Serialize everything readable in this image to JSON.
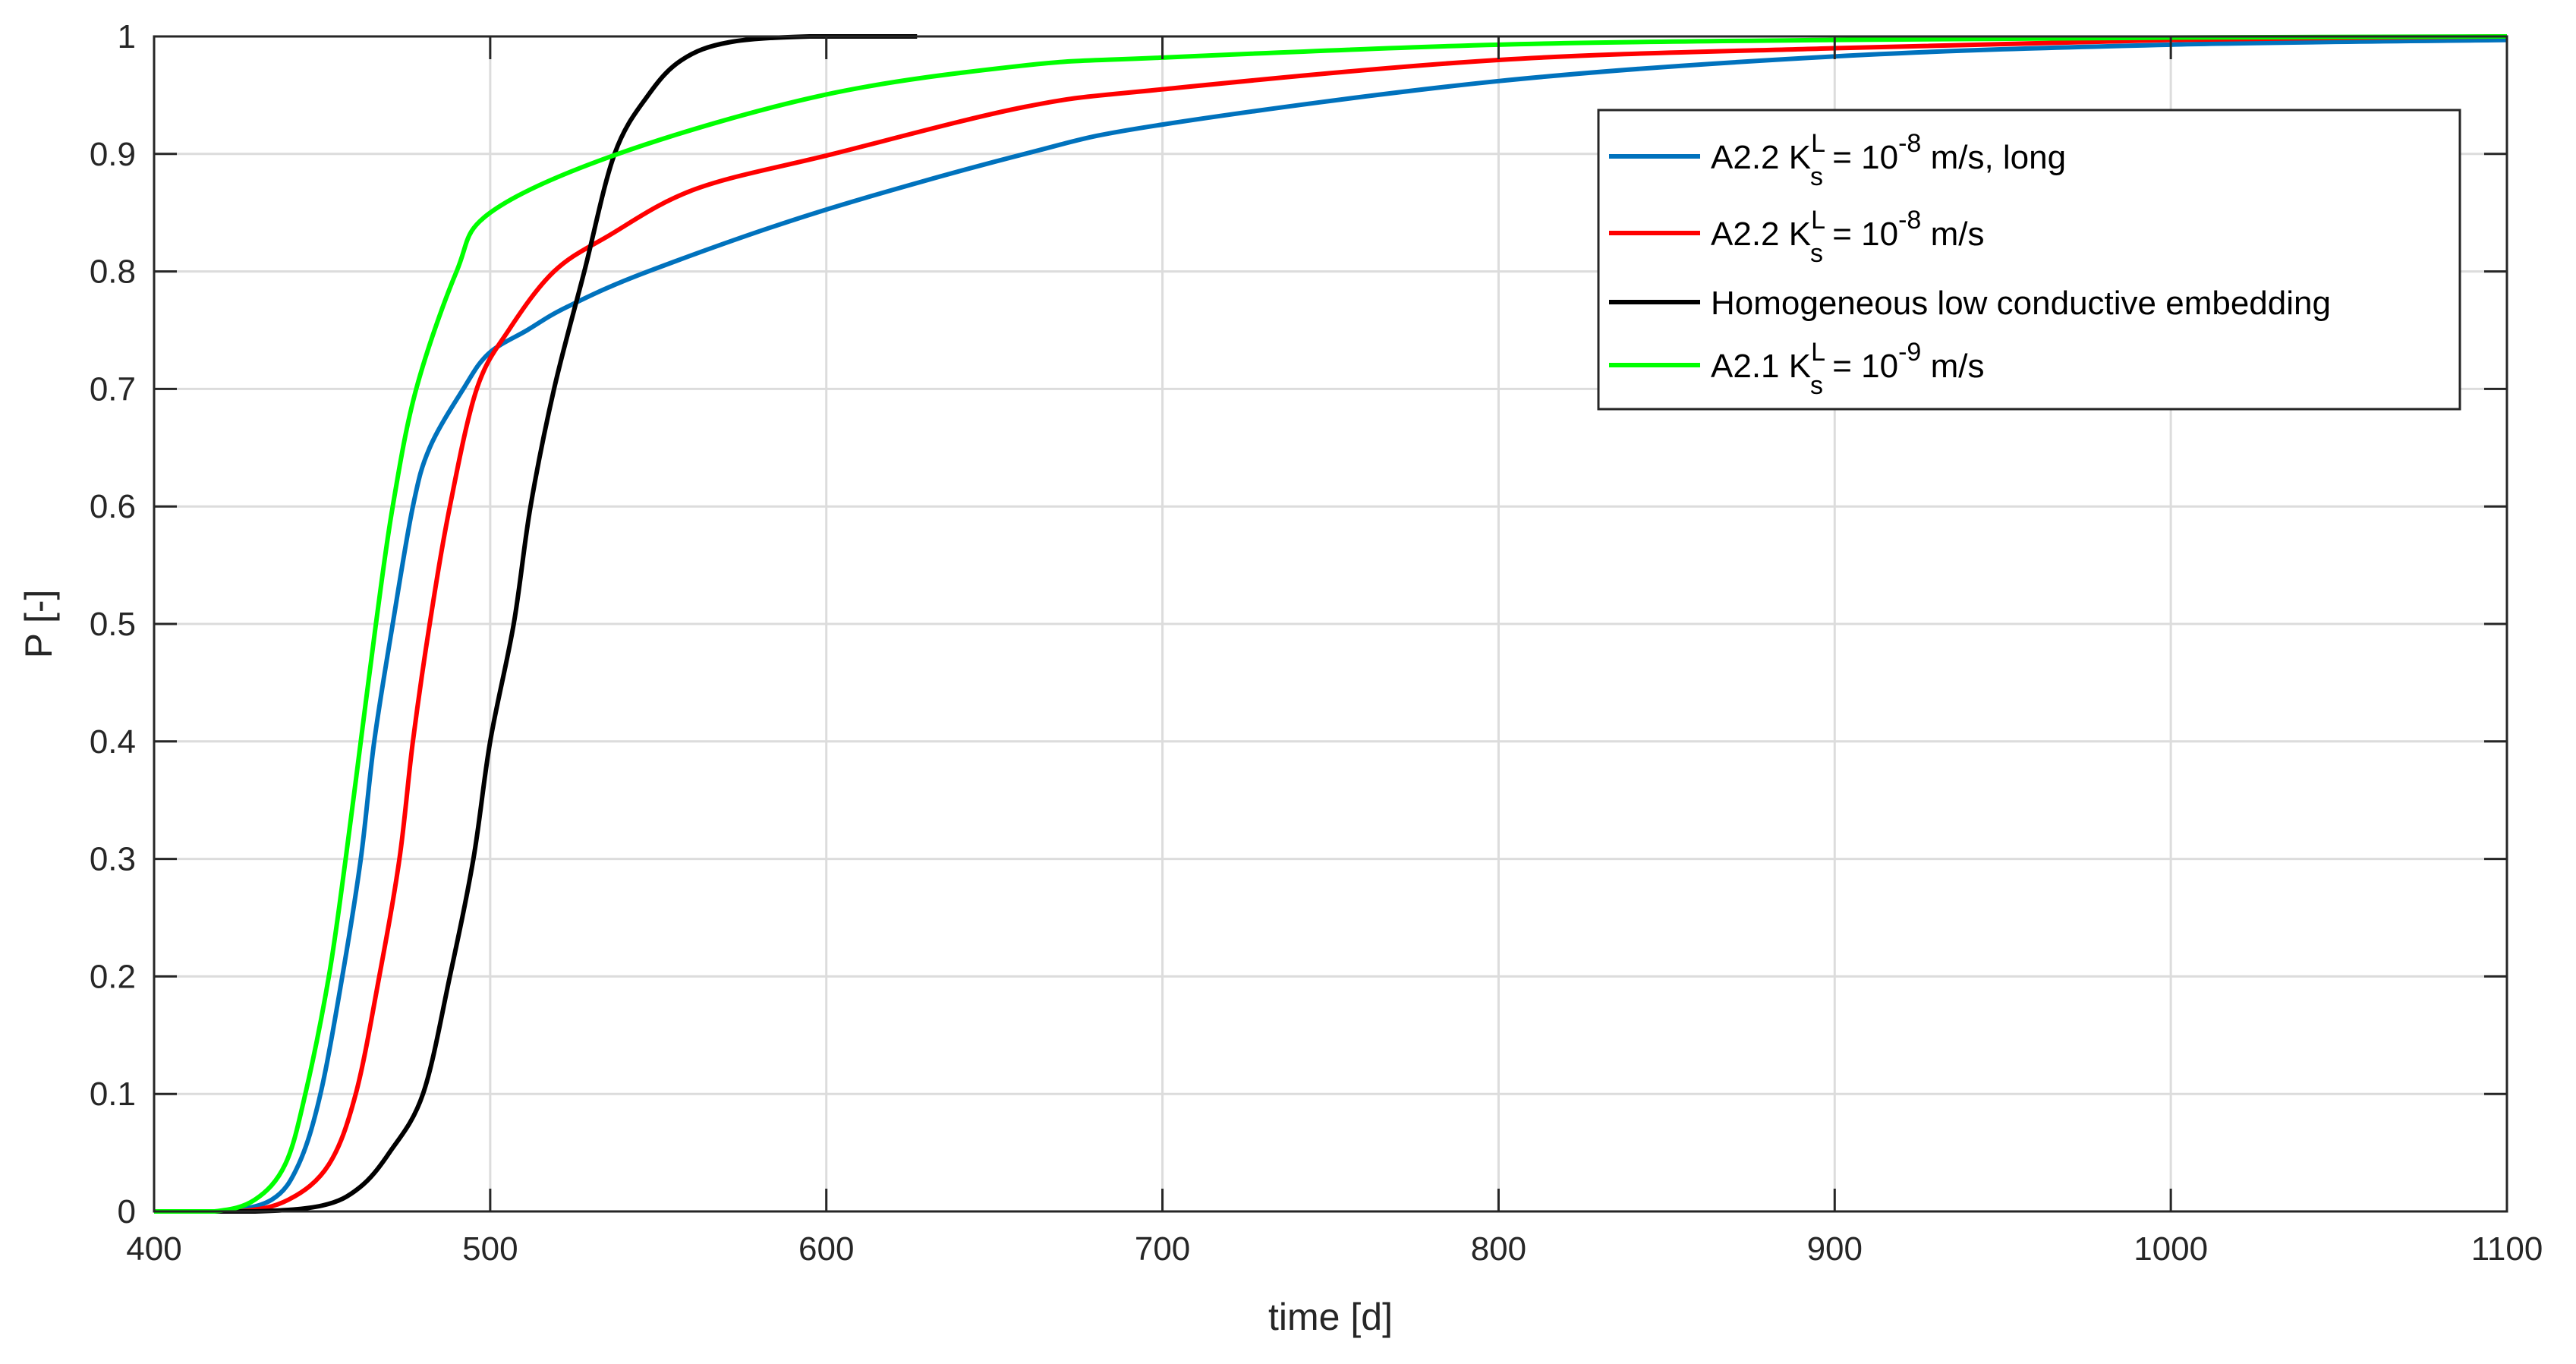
{
  "chart_data": {
    "type": "line",
    "title": "",
    "xlabel": "time [d]",
    "ylabel": "P [-]",
    "xlim": [
      400,
      1100
    ],
    "ylim": [
      0,
      1
    ],
    "xticks": [
      400,
      500,
      600,
      700,
      800,
      900,
      1000,
      1100
    ],
    "yticks": [
      0,
      0.1,
      0.2,
      0.3,
      0.4,
      0.5,
      0.6,
      0.7,
      0.8,
      0.9,
      1
    ],
    "ytick_labels": [
      "0",
      "0.1",
      "0.2",
      "0.3",
      "0.4",
      "0.5",
      "0.6",
      "0.7",
      "0.8",
      "0.9",
      "1"
    ],
    "grid": true,
    "legend_position": "top-right",
    "series": [
      {
        "name": "A2.2 K_s^L = 10^-8 m/s, long",
        "label_main": "A2.2 K",
        "label_sup": "L",
        "label_sub": "s",
        "label_mid": " = 10",
        "label_exp": "-8",
        "label_tail": " m/s, long",
        "color": "#0072BD",
        "x": [
          400,
          420,
          435,
          443,
          449.5,
          456,
          461.5,
          465.5,
          471,
          477,
          482,
          492,
          499.5,
          511,
          523,
          547,
          597,
          659,
          700,
          800,
          900,
          1000,
          1100
        ],
        "y": [
          0,
          0,
          0.01,
          0.04,
          0.1,
          0.2,
          0.3,
          0.4,
          0.5,
          0.6,
          0.65,
          0.7,
          0.73,
          0.75,
          0.77,
          0.8,
          0.85,
          0.9,
          0.925,
          0.962,
          0.983,
          0.993,
          0.997
        ]
      },
      {
        "name": "A2.2 K_s^L = 10^-8 m/s",
        "label_main": "A2.2 K",
        "label_sup": "L",
        "label_sub": "s",
        "label_mid": " = 10",
        "label_exp": "-8",
        "label_tail": " m/s",
        "color": "#FF0000",
        "x": [
          400,
          425,
          440,
          452,
          460,
          467,
          473,
          477,
          482,
          488,
          496,
          505.5,
          519,
          535,
          561,
          602,
          659,
          700,
          800,
          900,
          1000,
          1100
        ],
        "y": [
          0,
          0,
          0.01,
          0.04,
          0.1,
          0.2,
          0.3,
          0.4,
          0.5,
          0.6,
          0.7,
          0.75,
          0.8,
          0.83,
          0.87,
          0.9,
          0.94,
          0.955,
          0.98,
          0.99,
          0.997,
          1
        ]
      },
      {
        "name": "Homogeneous low conductive embedding",
        "label_main": "Homogeneous low conductive embedding",
        "label_sup": "",
        "label_sub": "",
        "label_mid": "",
        "label_exp": "",
        "label_tail": "",
        "color": "#000000",
        "x": [
          400,
          430,
          450,
          461,
          470,
          480,
          488,
          495,
          500,
          507,
          512,
          519,
          528,
          537,
          547,
          557,
          571,
          595,
          627
        ],
        "y": [
          0,
          0,
          0.005,
          0.02,
          0.05,
          0.1,
          0.2,
          0.3,
          0.4,
          0.5,
          0.6,
          0.7,
          0.8,
          0.9,
          0.95,
          0.98,
          0.995,
          1,
          1
        ]
      },
      {
        "name": "A2.1 K_s^L = 10^-9 m/s",
        "label_main": "A2.1 K",
        "label_sup": "L",
        "label_sub": "s",
        "label_mid": " = 10",
        "label_exp": "-9",
        "label_tail": " m/s",
        "color": "#00FF00",
        "x": [
          400,
          418,
          430,
          439,
          445,
          452,
          457,
          461.5,
          466,
          471,
          478,
          490,
          500,
          538,
          599,
          658,
          700,
          800,
          900,
          1000,
          1100
        ],
        "y": [
          0,
          0,
          0.01,
          0.04,
          0.1,
          0.2,
          0.3,
          0.4,
          0.5,
          0.6,
          0.7,
          0.8,
          0.85,
          0.9,
          0.95,
          0.975,
          0.982,
          0.993,
          0.997,
          0.999,
          1
        ]
      }
    ]
  }
}
